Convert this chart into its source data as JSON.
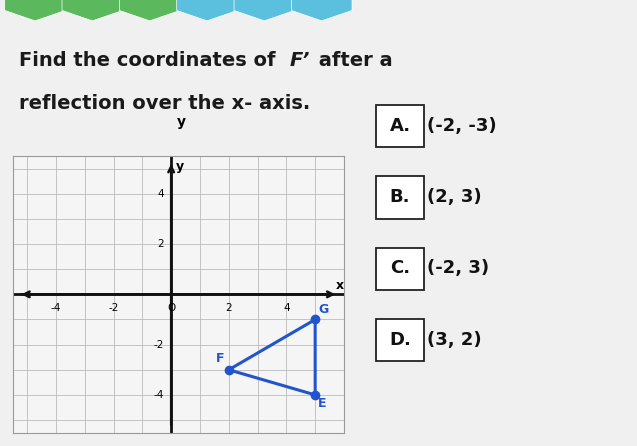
{
  "bg_color": "#f0f0f0",
  "graph_bg": "#f5f5f5",
  "grid_color": "#bbbbbb",
  "axis_color": "#111111",
  "triangle_color": "#2255cc",
  "triangle_vertices": {
    "F": [
      2,
      -3
    ],
    "G": [
      5,
      -1
    ],
    "E": [
      5,
      -4
    ]
  },
  "xlim": [
    -5.5,
    6.0
  ],
  "ylim": [
    -5.5,
    5.5
  ],
  "xticks": [
    -4,
    -2,
    0,
    2,
    4
  ],
  "yticks": [
    -4,
    -2,
    0,
    2,
    4
  ],
  "options": [
    {
      "label": "A.",
      "text": "(-2, -3)"
    },
    {
      "label": "B.",
      "text": "(2, 3)"
    },
    {
      "label": "C.",
      "text": "(-2, 3)"
    },
    {
      "label": "D.",
      "text": "(3, 2)"
    }
  ],
  "hex_green": "#5cb85c",
  "hex_blue": "#5bc0de",
  "title1": "Find the coordinates of ",
  "title_fp": "F’",
  "title1b": " after a",
  "title2": "reflection over the x- axis.",
  "font_size_title": 14,
  "font_size_options": 13
}
